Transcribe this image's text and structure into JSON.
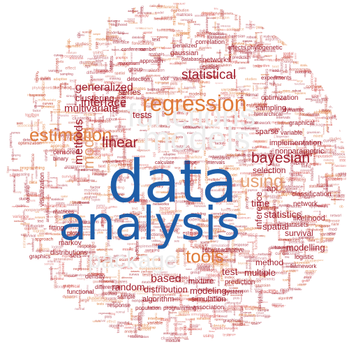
{
  "colors": {
    "primary_blue": "#1f5ea8",
    "accent_orange": "#e07b39",
    "muted_orange": "#e6a176",
    "red": "#c0392b",
    "dark_red": "#a11d2b",
    "pale_gray": "#eeeeee",
    "background": "#ffffff"
  },
  "words": {
    "data": "data",
    "analysis": "analysis",
    "regression": "regression",
    "estimation": "estimation",
    "using": "using",
    "bayesian": "bayesian",
    "linear": "linear",
    "model": "model",
    "methods": "methods",
    "tools": "tools",
    "statistical": "statistical",
    "generalized": "generalized",
    "interface": "interface",
    "multivariate": "multivariate",
    "clustering": "clustering",
    "tests": "tests",
    "series": "series",
    "selection": "selection",
    "time": "time",
    "statistics": "statistics",
    "spatial": "spatial",
    "inference": "inference",
    "based": "based",
    "random": "random",
    "distribution": "distribution",
    "modeling": "modeling",
    "test": "test",
    "multiple": "multiple",
    "method": "method",
    "survival": "survival",
    "modelling": "modelling",
    "likelihood": "likelihood",
    "classification": "classification",
    "network": "network",
    "functions": "functions",
    "models": "models",
    "package": "package",
    "simulation": "simulation",
    "algorithm": "algorithm",
    "mixture": "mixture",
    "prediction": "prediction",
    "implementation": "implementation",
    "nonparametric": "nonparametric",
    "sparse": "sparse",
    "sampling": "sampling",
    "optimization": "optimization",
    "gaussian": "gaussian",
    "networks": "networks",
    "utilities": "utilities",
    "correlation": "correlation",
    "graphical": "graphical",
    "variable": "variable",
    "robust": "robust",
    "adaptive": "adaptive",
    "system": "system",
    "association": "association",
    "markov": "markov",
    "plots": "plots",
    "fitting": "fitting",
    "distributions": "distributions",
    "density": "density",
    "functional": "functional",
    "mixed": "mixed",
    "logistic": "logistic",
    "datasets": "datasets",
    "sets": "sets",
    "api": "api",
    "experiments": "experiments",
    "dynamic": "dynamic",
    "hierarchical": "hierarchical",
    "effects": "effects",
    "phylogenetic": "phylogenetic",
    "approach": "approach",
    "group": "group",
    "penalized": "penalized",
    "detection": "detection",
    "visualization": "visualization",
    "censored": "censored",
    "graphics": "graphics",
    "matrices": "matrices",
    "binary": "binary",
    "sample": "sample",
    "differential": "differential",
    "population": "population",
    "programming": "programming",
    "response": "response",
    "design": "design",
    "toolbox": "toolbox",
    "intervals": "intervals",
    "models2": "models",
    "studies": "studies",
    "library": "library",
    "framework": "framework",
    "process": "process",
    "normal": "normal",
    "general": "general",
    "space": "space",
    "variance": "variance",
    "point": "point",
    "effect": "effect",
    "maximum": "maximum",
    "database": "database",
    "text": "text",
    "matrix": "matrix",
    "tool": "tool",
    "variables": "variables",
    "objects": "objects",
    "number": "number",
    "large": "large",
    "calculate": "calculate",
    "conference": "conference",
    "kernel": "kernel",
    "curves": "curves",
    "bootstrap": "bootstrap",
    "testing": "testing",
    "index": "index",
    "estimates": "estimates",
    "factor": "factor",
    "genetic": "genetic",
    "missing": "missing",
    "imputation": "imputation",
    "squares": "squares",
    "quantile": "quantile",
    "forecasting": "forecasting"
  }
}
